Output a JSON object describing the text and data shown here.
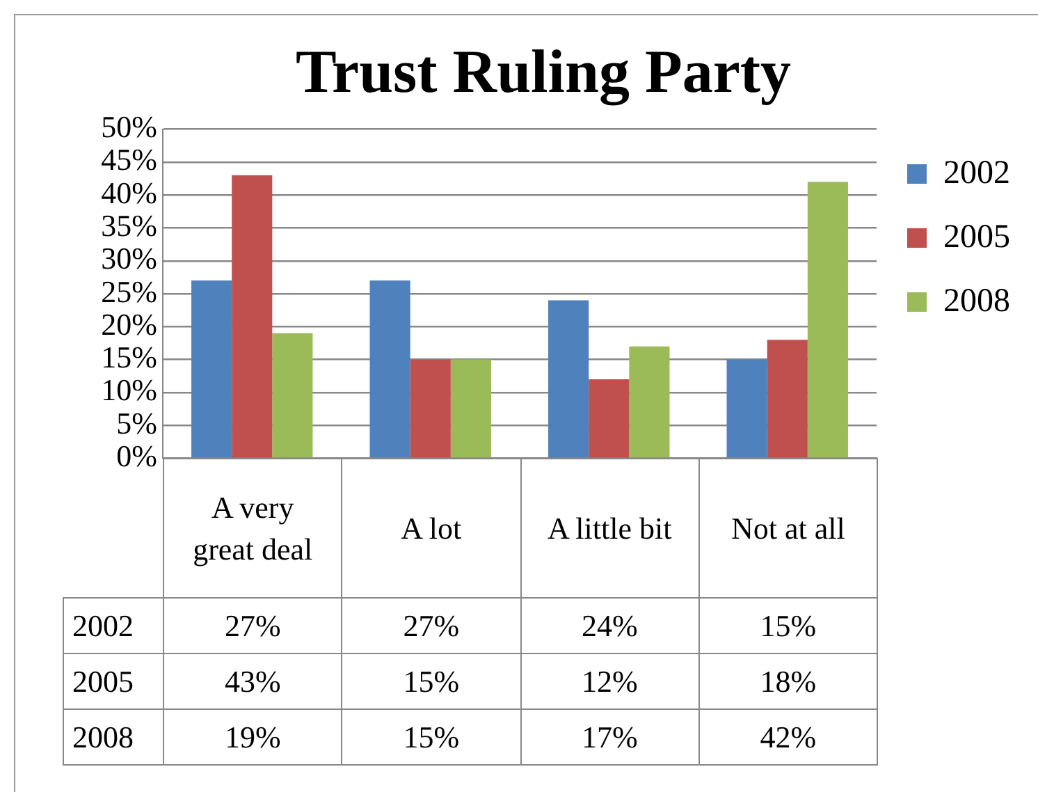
{
  "chart_data": {
    "type": "bar",
    "title": "Trust Ruling Party",
    "categories": [
      "A very great deal",
      "A lot",
      "A little bit",
      "Not at all"
    ],
    "series": [
      {
        "name": "2002",
        "color": "#4f81bd",
        "values": [
          27,
          27,
          24,
          15
        ],
        "value_labels": [
          "27%",
          "27%",
          "24%",
          "15%"
        ]
      },
      {
        "name": "2005",
        "color": "#c0504d",
        "values": [
          43,
          15,
          12,
          18
        ],
        "value_labels": [
          "43%",
          "15%",
          "12%",
          "18%"
        ]
      },
      {
        "name": "2008",
        "color": "#9bbb59",
        "values": [
          19,
          15,
          17,
          42
        ],
        "value_labels": [
          "19%",
          "15%",
          "17%",
          "42%"
        ]
      }
    ],
    "ylim": [
      0,
      50
    ],
    "yticks": [
      {
        "value": 0,
        "label": "0%"
      },
      {
        "value": 5,
        "label": "5%"
      },
      {
        "value": 10,
        "label": "10%"
      },
      {
        "value": 15,
        "label": "15%"
      },
      {
        "value": 20,
        "label": "20%"
      },
      {
        "value": 25,
        "label": "25%"
      },
      {
        "value": 30,
        "label": "30%"
      },
      {
        "value": 35,
        "label": "35%"
      },
      {
        "value": 40,
        "label": "40%"
      },
      {
        "value": 45,
        "label": "45%"
      },
      {
        "value": 50,
        "label": "50%"
      }
    ],
    "grid": "y",
    "legend": "right"
  }
}
